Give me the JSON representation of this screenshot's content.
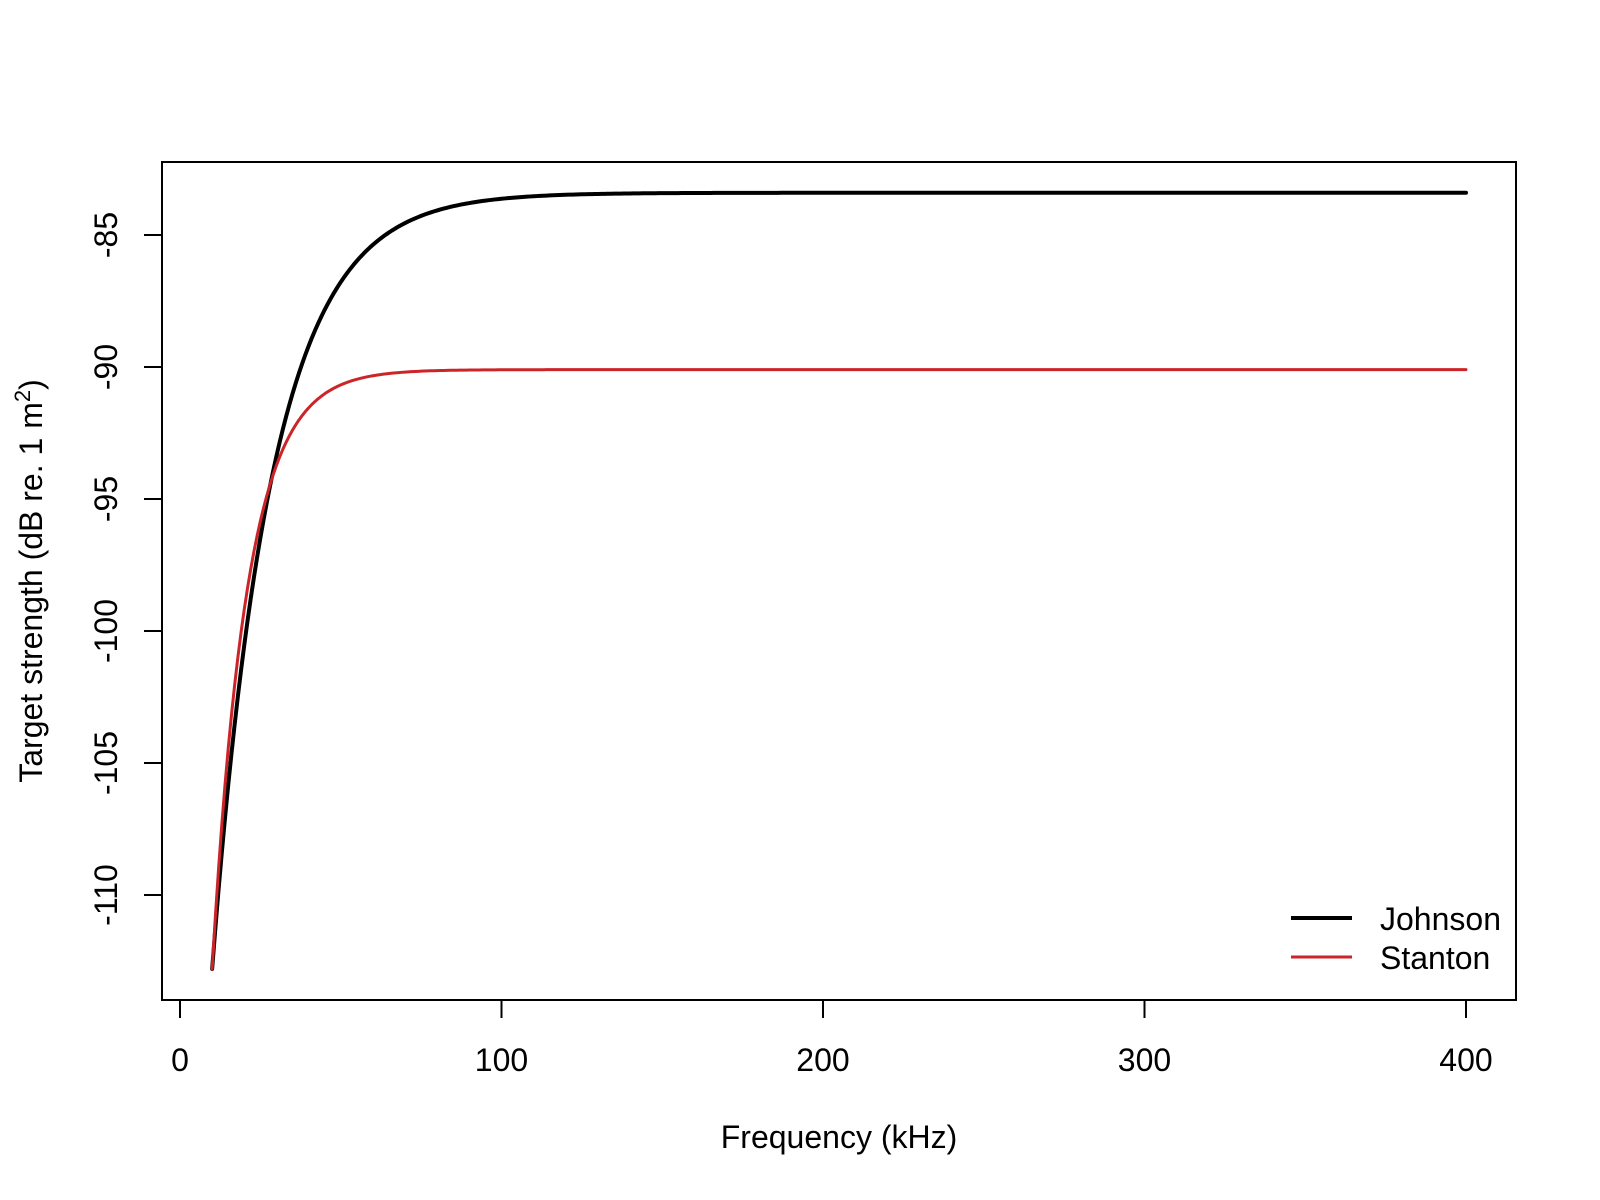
{
  "chart_data": {
    "type": "line",
    "title": "",
    "xlabel": "Frequency (kHz)",
    "ylabel": "Target strength (dB re. 1 m",
    "ylabel_superscript": "2",
    "ylabel_suffix": ")",
    "xlim": [
      -5,
      412
    ],
    "ylim": [
      -113.5,
      -82.2
    ],
    "x_ticks": [
      0,
      100,
      200,
      300,
      400
    ],
    "x_tick_labels": [
      "0",
      "100",
      "200",
      "300",
      "400"
    ],
    "y_ticks": [
      -110,
      -105,
      -100,
      -95,
      -90,
      -85
    ],
    "y_tick_labels": [
      "-110",
      "-105",
      "-100",
      "-95",
      "-90",
      "-85"
    ],
    "grid": false,
    "legend_position": "bottomright",
    "series": [
      {
        "name": "Johnson",
        "color": "#000000",
        "line_width": 4,
        "model": {
          "plateau": -83.4,
          "start_value": -112.8,
          "tau_khz": 18.5
        },
        "x": [
          10,
          20,
          30,
          40,
          50,
          60,
          70,
          80,
          90,
          100,
          125,
          150,
          200,
          250,
          300,
          350,
          400
        ],
        "values": [
          -112.8,
          -103.6,
          -97.3,
          -92.9,
          -89.8,
          -87.7,
          -86.2,
          -85.2,
          -84.5,
          -84.1,
          -83.6,
          -83.5,
          -83.4,
          -83.4,
          -83.4,
          -83.4,
          -83.4
        ]
      },
      {
        "name": "Stanton",
        "color": "#cc2529",
        "line_width": 3,
        "model": {
          "plateau": -90.1,
          "start_value": -112.8,
          "tau_khz": 10.9
        },
        "x": [
          10,
          20,
          30,
          40,
          50,
          60,
          70,
          80,
          90,
          100,
          125,
          150,
          200,
          250,
          300,
          350,
          400
        ],
        "values": [
          -112.8,
          -99.6,
          -94.3,
          -91.3,
          -90.6,
          -90.3,
          -90.2,
          -90.1,
          -90.1,
          -90.1,
          -90.1,
          -90.1,
          -90.1,
          -90.1,
          -90.1,
          -90.1,
          -90.1
        ]
      }
    ]
  }
}
